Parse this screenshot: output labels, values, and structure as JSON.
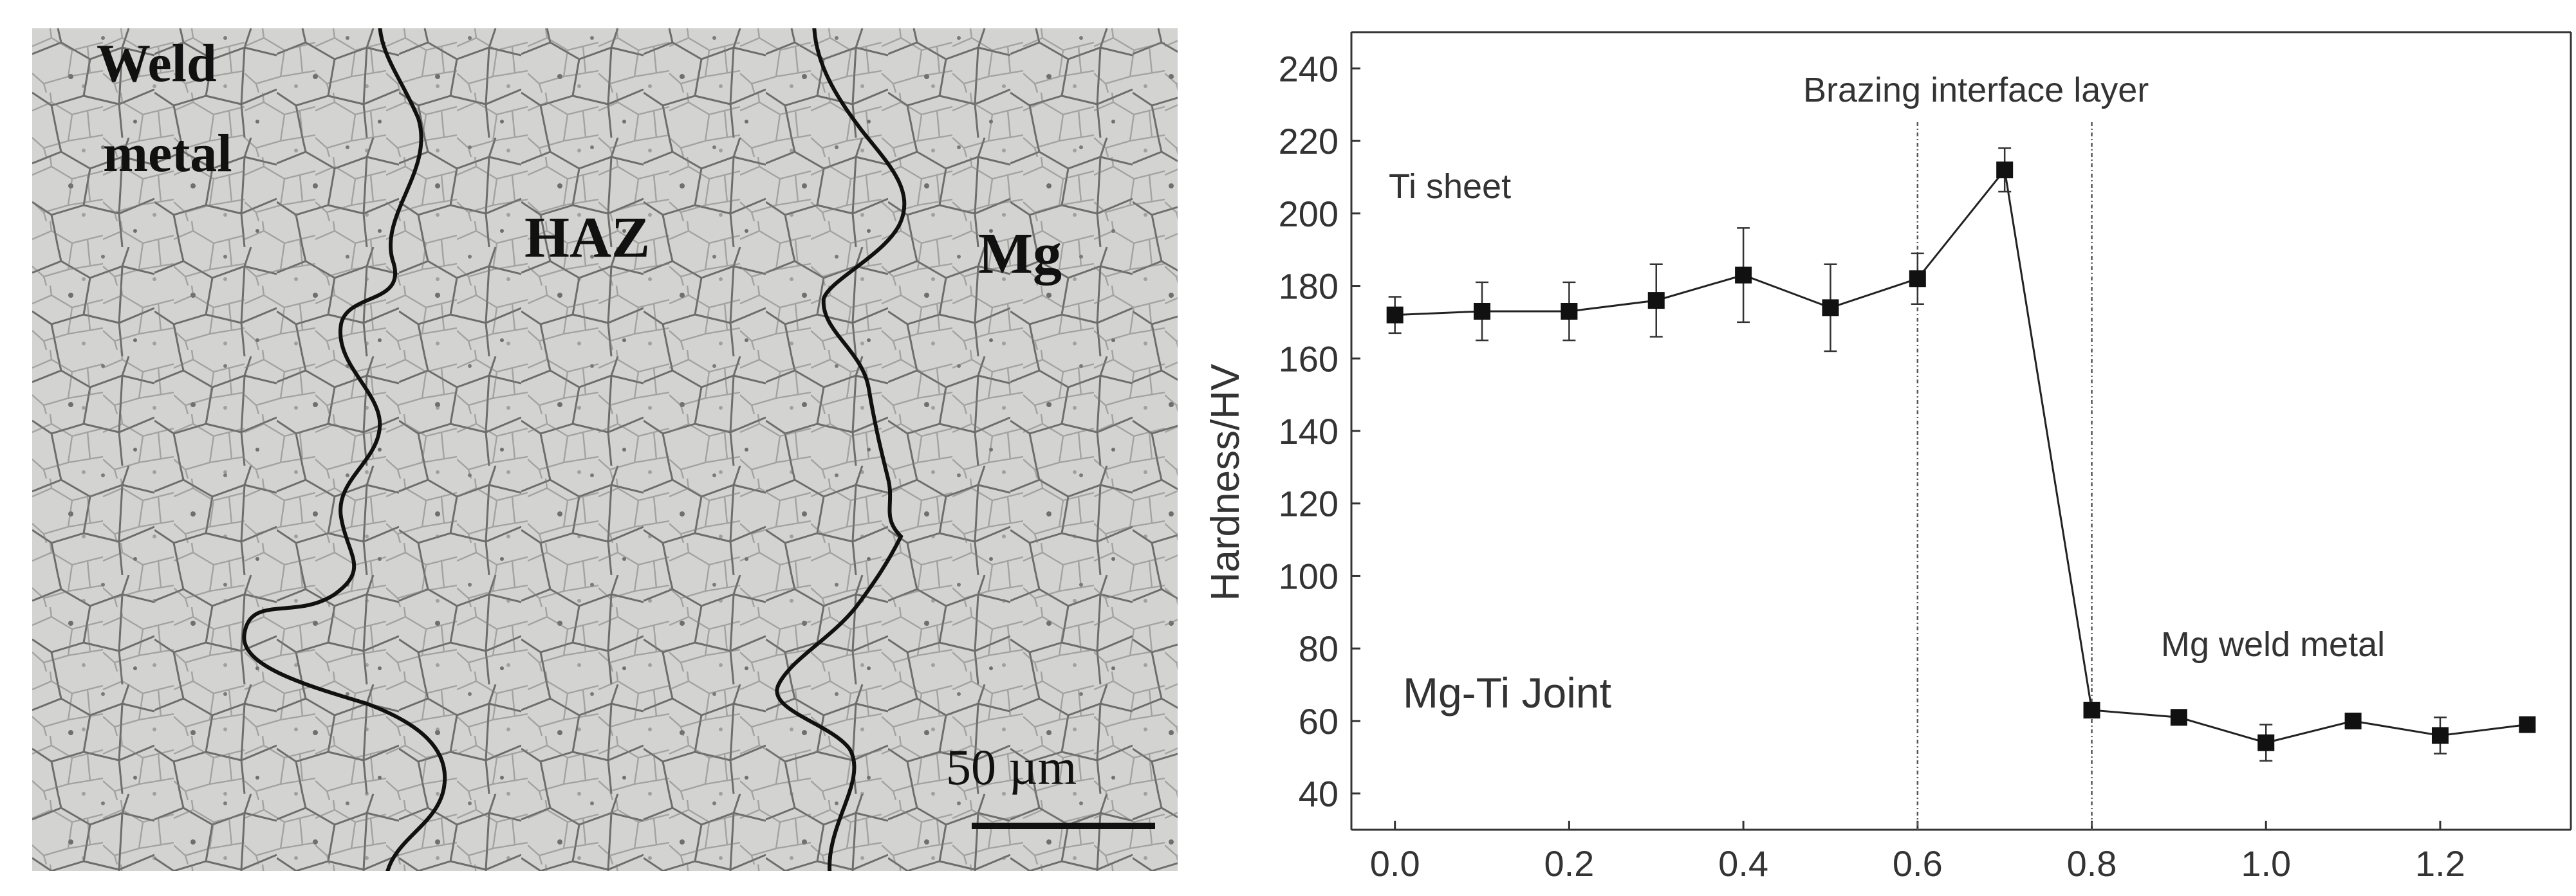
{
  "micrograph": {
    "labels": {
      "weld_line1": "Weld",
      "weld_line2": "metal",
      "haz": "HAZ",
      "mg": "Mg",
      "scale": "50 µm"
    }
  },
  "chart_data": {
    "type": "line",
    "ylabel": "Hardness/HV",
    "xlabel": "",
    "xlim": [
      -0.05,
      1.35
    ],
    "ylim": [
      30,
      250
    ],
    "x_ticks": [
      0.0,
      0.2,
      0.4,
      0.6,
      0.8,
      1.0,
      1.2
    ],
    "y_ticks": [
      40,
      60,
      80,
      100,
      120,
      140,
      160,
      180,
      200,
      220,
      240
    ],
    "x_tick_labels": [
      "0.0",
      "0.2",
      "0.4",
      "0.6",
      "0.8",
      "1.0",
      "1.2"
    ],
    "y_tick_labels": [
      "40",
      "60",
      "80",
      "100",
      "120",
      "140",
      "160",
      "180",
      "200",
      "220",
      "240"
    ],
    "grid": false,
    "annotations": {
      "ti_sheet": "Ti sheet",
      "interface": "Brazing interface layer",
      "mg_weld": "Mg weld metal",
      "joint": "Mg-Ti Joint"
    },
    "vlines": [
      0.6,
      0.8
    ],
    "series": [
      {
        "x": [
          0.0,
          0.1,
          0.2,
          0.3,
          0.4,
          0.5,
          0.6,
          0.7,
          0.8,
          0.9,
          1.0,
          1.1,
          1.2,
          1.3
        ],
        "y": [
          172,
          173,
          173,
          176,
          183,
          174,
          182,
          212,
          63,
          61,
          54,
          60,
          56,
          59
        ],
        "err": [
          5,
          8,
          8,
          10,
          13,
          12,
          7,
          6,
          0,
          0,
          5,
          0,
          5,
          0
        ]
      }
    ]
  }
}
